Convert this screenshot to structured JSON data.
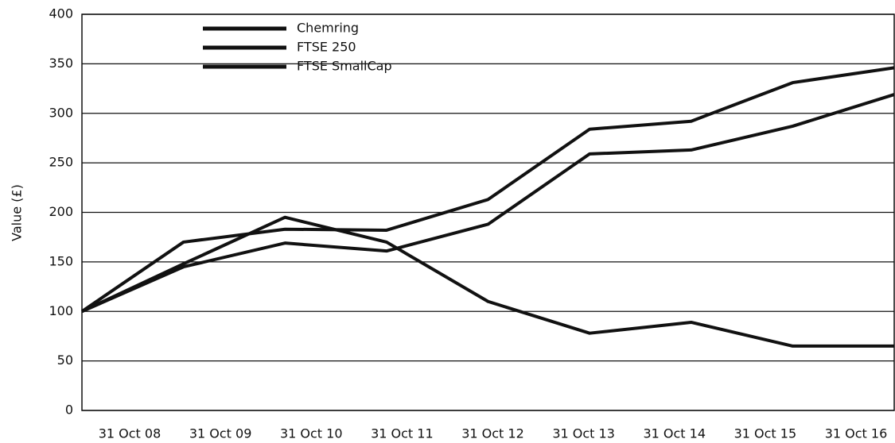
{
  "chart_data": {
    "type": "line",
    "ylabel": "Value (£)",
    "categories": [
      "31 Oct 08",
      "31 Oct 09",
      "31 Oct 10",
      "31 Oct 11",
      "31 Oct 12",
      "31 Oct 13",
      "31 Oct 14",
      "31 Oct 15",
      "31 Oct 16"
    ],
    "series": [
      {
        "name": "Chemring",
        "color": "#111111",
        "values": [
          100,
          148,
          195,
          170,
          110,
          78,
          89,
          65,
          65
        ]
      },
      {
        "name": "FTSE 250",
        "color": "#111111",
        "values": [
          100,
          170,
          183,
          182,
          213,
          284,
          292,
          331,
          346
        ]
      },
      {
        "name": "FTSE SmallCap",
        "color": "#111111",
        "values": [
          100,
          145,
          169,
          161,
          188,
          259,
          263,
          287,
          319
        ]
      }
    ],
    "ylim": [
      0,
      400
    ],
    "yticks": [
      0,
      50,
      100,
      150,
      200,
      250,
      300,
      350,
      400
    ],
    "grid": true
  }
}
